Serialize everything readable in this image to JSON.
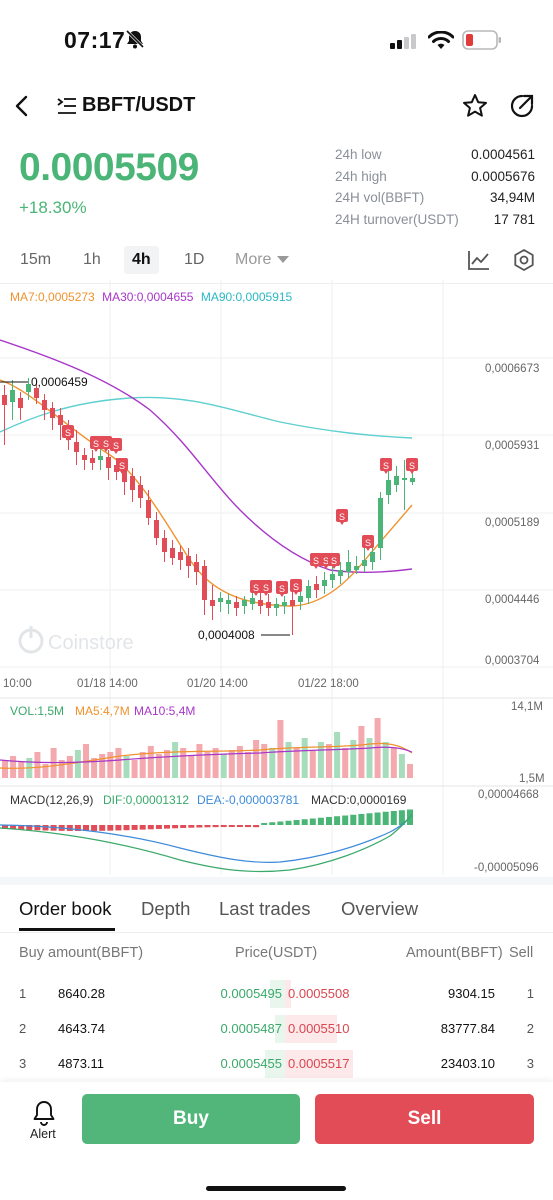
{
  "status_bar": {
    "time": "07:17"
  },
  "header": {
    "pair": "BBFT/USDT"
  },
  "price": {
    "last": "0.0005509",
    "change": "+18.30%"
  },
  "stats": [
    {
      "label": "24h low",
      "value": "0.0004561"
    },
    {
      "label": "24h high",
      "value": "0.0005676"
    },
    {
      "label": "24H vol(BBFT)",
      "value": "34,94M"
    },
    {
      "label": "24H turnover(USDT)",
      "value": "17 781"
    }
  ],
  "intervals": {
    "m15": "15m",
    "h1": "1h",
    "h4": "4h",
    "d1": "1D",
    "more": "More",
    "active": "4h"
  },
  "ma_legend": {
    "ma7": "MA7:0,0005273",
    "ma30": "MA30:0,0004655",
    "ma90": "MA90:0,0005915"
  },
  "price_axis": [
    "0,0006673",
    "0,0005931",
    "0,0005189",
    "0,0004446",
    "0,0003704"
  ],
  "time_axis": [
    "10:00",
    "01/18 14:00",
    "01/20 14:00",
    "01/22 18:00"
  ],
  "annotations": {
    "high": "0,0006459",
    "low": "0,0004008"
  },
  "watermark": "Coinstore",
  "volume": {
    "vol": "VOL:1,5M",
    "ma5": "MA5:4,7M",
    "ma10": "MA10:5,4M",
    "max": "14,1M",
    "min": "1,5M"
  },
  "macd": {
    "label": "MACD(12,26,9)",
    "dif": "DIF:0,00001312",
    "dea": "DEA:-0,000003781",
    "macd": "MACD:0,0000169",
    "max": "0,00004668",
    "min": "-0,00005096"
  },
  "colors": {
    "up": "#4bb477",
    "down": "#e14c57",
    "ma7": "#f0922e",
    "ma30": "#a737c8",
    "ma90": "#5fcfcf"
  },
  "signal_marker": "S",
  "tabs": [
    "Order book",
    "Depth",
    "Last trades",
    "Overview"
  ],
  "orderbook_head": {
    "buy": "Buy amount(BBFT)",
    "price": "Price(USDT)",
    "amount": "Amount(BBFT)",
    "sell": "Sell"
  },
  "orderbook": [
    {
      "idx": "1",
      "buy_amount": "8640.28",
      "bid": "0.0005495",
      "ask": "0.0005508",
      "sell_amount": "9304.15",
      "idx2": "1"
    },
    {
      "idx": "2",
      "buy_amount": "4643.74",
      "bid": "0.0005487",
      "ask": "0.0005510",
      "sell_amount": "83777.84",
      "idx2": "2"
    },
    {
      "idx": "3",
      "buy_amount": "4873.11",
      "bid": "0.0005455",
      "ask": "0.0005517",
      "sell_amount": "23403.10",
      "idx2": "3"
    }
  ],
  "bottom": {
    "alert": "Alert",
    "buy": "Buy",
    "sell": "Sell"
  }
}
